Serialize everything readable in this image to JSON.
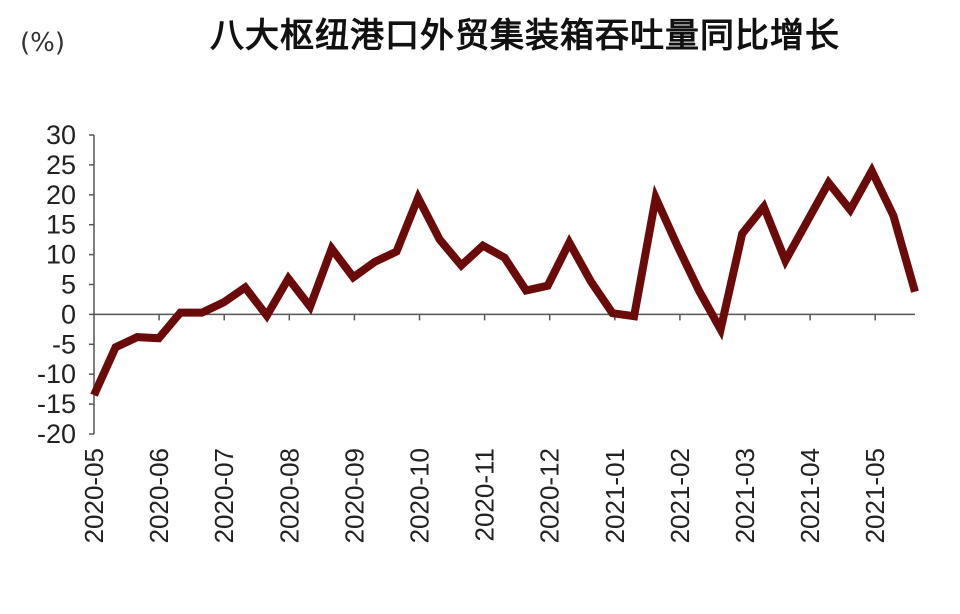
{
  "chart_data": {
    "type": "line",
    "title": "八大枢纽港口外贸集装箱吞吐量同比增长",
    "unit_label": "(%)",
    "xlabel": "",
    "ylabel": "",
    "ylim": [
      -20,
      30
    ],
    "yticks": [
      "30",
      "25",
      "20",
      "15",
      "10",
      "5",
      "0",
      "-5",
      "-10",
      "-15",
      "-20"
    ],
    "xtick_labels": [
      "2020-05",
      "2020-06",
      "2020-07",
      "2020-08",
      "2020-09",
      "2020-10",
      "2020-11",
      "2020-12",
      "2021-01",
      "2021-02",
      "2021-03",
      "2021-04",
      "2021-05"
    ],
    "grid": false,
    "legend": "none",
    "line_color": "#6b0a0a",
    "series": [
      {
        "values": [
          -13.5,
          -5.5,
          -3.8,
          -4,
          0.3,
          0.3,
          2,
          4.5,
          -0.2,
          6,
          1.3,
          11,
          6.2,
          8.8,
          10.5,
          19.5,
          12.5,
          8.2,
          11.5,
          9.5,
          4,
          4.8,
          12,
          5.5,
          0.2,
          -0.3,
          19.5,
          11.5,
          4,
          -2.5,
          13.5,
          18,
          9,
          15.5,
          22,
          17.5,
          24,
          16.5,
          3.8
        ]
      }
    ]
  }
}
